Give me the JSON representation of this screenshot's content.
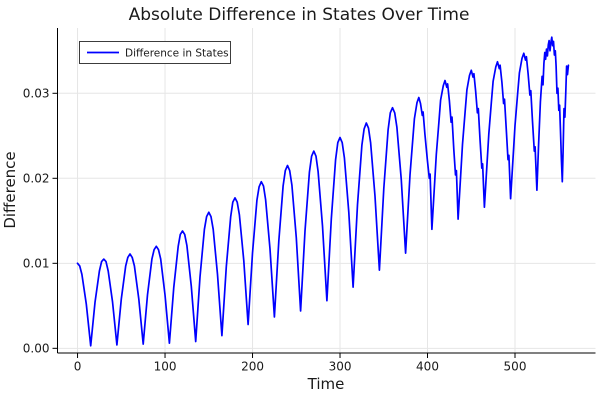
{
  "chart_data": {
    "type": "line",
    "title": "Absolute Difference in States Over Time",
    "xlabel": "Time",
    "ylabel": "Difference",
    "grid": true,
    "legend": {
      "position": "top-left",
      "entries": [
        {
          "label": "Difference in States",
          "color": "#0000ff"
        }
      ]
    },
    "xlim": [
      -22.9,
      592
    ],
    "ylim": [
      -0.00055,
      0.03768
    ],
    "xticks": {
      "values": [
        0,
        100,
        200,
        300,
        400,
        500
      ],
      "labels": [
        "0",
        "100",
        "200",
        "300",
        "400",
        "500"
      ]
    },
    "yticks": {
      "values": [
        0,
        0.01,
        0.02,
        0.03
      ],
      "labels": [
        "0.00",
        "0.01",
        "0.02",
        "0.03"
      ]
    },
    "colors": {
      "line": "#0000ff",
      "grid": "#e6e6e6",
      "axis": "#000000",
      "text": "#1a1a1a",
      "background": "#ffffff",
      "legend_border": "#3c3c3c"
    },
    "y_scale": 0.0001,
    "series": [
      {
        "name": "Difference in States",
        "color": "#0000ff",
        "points": [
          [
            0,
            100
          ],
          [
            2.5,
            97
          ],
          [
            5,
            87
          ],
          [
            10,
            52
          ],
          [
            15,
            3
          ],
          [
            20,
            54
          ],
          [
            25,
            91
          ],
          [
            27.5,
            102
          ],
          [
            30,
            105
          ],
          [
            32.5,
            102
          ],
          [
            35,
            91
          ],
          [
            40,
            55
          ],
          [
            45,
            4
          ],
          [
            50,
            58
          ],
          [
            55,
            97
          ],
          [
            57.5,
            107
          ],
          [
            60,
            111
          ],
          [
            62.5,
            107
          ],
          [
            65,
            97
          ],
          [
            70,
            58
          ],
          [
            75,
            5
          ],
          [
            80,
            63
          ],
          [
            85,
            105
          ],
          [
            87.5,
            116
          ],
          [
            90,
            120
          ],
          [
            92.5,
            116
          ],
          [
            95,
            105
          ],
          [
            100,
            63
          ],
          [
            105,
            6
          ],
          [
            110,
            72
          ],
          [
            115,
            120
          ],
          [
            117.5,
            134
          ],
          [
            120,
            138
          ],
          [
            122.5,
            134
          ],
          [
            125,
            121
          ],
          [
            130,
            73
          ],
          [
            135,
            8
          ],
          [
            140,
            84
          ],
          [
            145,
            140
          ],
          [
            147.5,
            155
          ],
          [
            150,
            160
          ],
          [
            152.5,
            155
          ],
          [
            155,
            140
          ],
          [
            160,
            87
          ],
          [
            165,
            15
          ],
          [
            170,
            96
          ],
          [
            175,
            155
          ],
          [
            177.5,
            172
          ],
          [
            180,
            177
          ],
          [
            182.5,
            172
          ],
          [
            185,
            157
          ],
          [
            190,
            103
          ],
          [
            195,
            28
          ],
          [
            200,
            112
          ],
          [
            205,
            174
          ],
          [
            207.5,
            190
          ],
          [
            210,
            196
          ],
          [
            212.5,
            191
          ],
          [
            215,
            175
          ],
          [
            220,
            117
          ],
          [
            225,
            37
          ],
          [
            230,
            126
          ],
          [
            235,
            191
          ],
          [
            237.5,
            209
          ],
          [
            240,
            215
          ],
          [
            242.5,
            209
          ],
          [
            245,
            192
          ],
          [
            250,
            130
          ],
          [
            255,
            44
          ],
          [
            260,
            138
          ],
          [
            265,
            207
          ],
          [
            267.5,
            226
          ],
          [
            270,
            232
          ],
          [
            272.5,
            226
          ],
          [
            275,
            208
          ],
          [
            280,
            144
          ],
          [
            285,
            56
          ],
          [
            290,
            152
          ],
          [
            295,
            222
          ],
          [
            297.5,
            242
          ],
          [
            300,
            248
          ],
          [
            302.5,
            242
          ],
          [
            305,
            224
          ],
          [
            310,
            160
          ],
          [
            315,
            72
          ],
          [
            320,
            169
          ],
          [
            325,
            239
          ],
          [
            327.5,
            258
          ],
          [
            330,
            265
          ],
          [
            332.5,
            259
          ],
          [
            335,
            242
          ],
          [
            340,
            179
          ],
          [
            345,
            92
          ],
          [
            350,
            188
          ],
          [
            355,
            257
          ],
          [
            357.5,
            277
          ],
          [
            360,
            283
          ],
          [
            362.5,
            277
          ],
          [
            365,
            260
          ],
          [
            370,
            198
          ],
          [
            375,
            112
          ],
          [
            380,
            204
          ],
          [
            385,
            270
          ],
          [
            388,
            289
          ],
          [
            390,
            295
          ],
          [
            392,
            288
          ],
          [
            394,
            274
          ],
          [
            395,
            278
          ],
          [
            397,
            252
          ],
          [
            400,
            220
          ],
          [
            402,
            200
          ],
          [
            403,
            205
          ],
          [
            405,
            140
          ],
          [
            410,
            228
          ],
          [
            413,
            266
          ],
          [
            415,
            292
          ],
          [
            418,
            309
          ],
          [
            420,
            315
          ],
          [
            422,
            307
          ],
          [
            423,
            311
          ],
          [
            425,
            291
          ],
          [
            427,
            266
          ],
          [
            428,
            272
          ],
          [
            430,
            234
          ],
          [
            432,
            204
          ],
          [
            433,
            209
          ],
          [
            435,
            152
          ],
          [
            440,
            240
          ],
          [
            443,
            278
          ],
          [
            445,
            304
          ],
          [
            448,
            321
          ],
          [
            450,
            327
          ],
          [
            452,
            319
          ],
          [
            453,
            323
          ],
          [
            455,
            303
          ],
          [
            457,
            277
          ],
          [
            458,
            282
          ],
          [
            460,
            246
          ],
          [
            462,
            212
          ],
          [
            463,
            217
          ],
          [
            465,
            166
          ],
          [
            470,
            252
          ],
          [
            473,
            290
          ],
          [
            475,
            314
          ],
          [
            478,
            331
          ],
          [
            480,
            337
          ],
          [
            482,
            329
          ],
          [
            483,
            333
          ],
          [
            485,
            313
          ],
          [
            487,
            288
          ],
          [
            488,
            293
          ],
          [
            490,
            257
          ],
          [
            492,
            222
          ],
          [
            493,
            227
          ],
          [
            495,
            176
          ],
          [
            500,
            262
          ],
          [
            503,
            299
          ],
          [
            505,
            324
          ],
          [
            508,
            341
          ],
          [
            510,
            347
          ],
          [
            512,
            339
          ],
          [
            513,
            343
          ],
          [
            515,
            323
          ],
          [
            517,
            298
          ],
          [
            518,
            303
          ],
          [
            520,
            267
          ],
          [
            522,
            232
          ],
          [
            523,
            237
          ],
          [
            525,
            186
          ],
          [
            527,
            240
          ],
          [
            529,
            290
          ],
          [
            531,
            320
          ],
          [
            532,
            310
          ],
          [
            533,
            335
          ],
          [
            534,
            348
          ],
          [
            535,
            340
          ],
          [
            536,
            352
          ],
          [
            537,
            344
          ],
          [
            538,
            357
          ],
          [
            539,
            362
          ],
          [
            540,
            350
          ],
          [
            541,
            360
          ],
          [
            542,
            366
          ],
          [
            543,
            356
          ],
          [
            544,
            361
          ],
          [
            545,
            345
          ],
          [
            546,
            350
          ],
          [
            547,
            332
          ],
          [
            548,
            300
          ],
          [
            549,
            306
          ],
          [
            550,
            280
          ],
          [
            551,
            286
          ],
          [
            552,
            255
          ],
          [
            553,
            222
          ],
          [
            554,
            196
          ],
          [
            555,
            232
          ],
          [
            556,
            282
          ],
          [
            557,
            272
          ],
          [
            558,
            302
          ],
          [
            559,
            332
          ],
          [
            560,
            322
          ],
          [
            561,
            333
          ]
        ]
      }
    ]
  }
}
